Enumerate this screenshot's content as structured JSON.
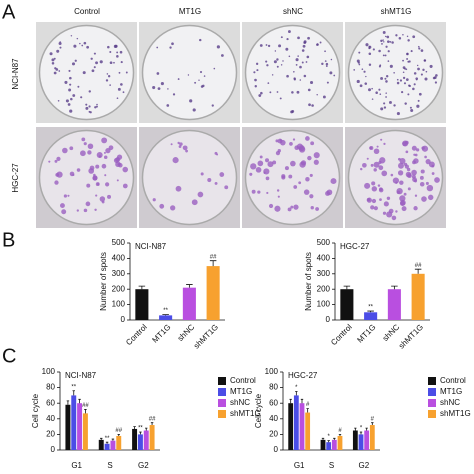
{
  "panel_labels": [
    "A",
    "B",
    "C"
  ],
  "panel_a": {
    "columns": [
      "Control",
      "MT1G",
      "shNC",
      "shMT1G"
    ],
    "rows": [
      "NCI-N87",
      "HGC-27"
    ]
  },
  "chart_data": [
    {
      "type": "bar",
      "title": "NCI-N87",
      "y_label": "Number of spots",
      "categories": [
        "Control",
        "MT1G",
        "shNC",
        "shMT1G"
      ],
      "values": [
        200,
        30,
        210,
        350
      ],
      "errors": [
        20,
        5,
        20,
        35
      ],
      "colors": [
        "#111111",
        "#4b4de6",
        "#b94fe0",
        "#f7a12f"
      ],
      "significance": [
        null,
        "**",
        null,
        "##"
      ],
      "ylim": [
        0,
        500
      ],
      "yticks": [
        0,
        100,
        200,
        300,
        400,
        500
      ]
    },
    {
      "type": "bar",
      "title": "HGC-27",
      "y_label": "Number of spots",
      "categories": [
        "Control",
        "MT1G",
        "shNC",
        "shMT1G"
      ],
      "values": [
        200,
        50,
        200,
        300
      ],
      "errors": [
        20,
        8,
        20,
        30
      ],
      "colors": [
        "#111111",
        "#4b4de6",
        "#b94fe0",
        "#f7a12f"
      ],
      "significance": [
        null,
        "**",
        null,
        "##"
      ],
      "ylim": [
        0,
        500
      ],
      "yticks": [
        0,
        100,
        200,
        300,
        400,
        500
      ]
    },
    {
      "type": "grouped-bar",
      "title": "NCI-N87",
      "y_label": "Cell cycle",
      "categories": [
        "G1",
        "S",
        "G2"
      ],
      "series": [
        {
          "name": "Control",
          "color": "#111111",
          "values": [
            58,
            13,
            27
          ],
          "errors": [
            5,
            2,
            3
          ],
          "significance": [
            null,
            null,
            null
          ]
        },
        {
          "name": "MT1G",
          "color": "#4b4de6",
          "values": [
            70,
            8,
            20
          ],
          "errors": [
            6,
            2,
            3
          ],
          "significance": [
            "**",
            "**",
            "**"
          ]
        },
        {
          "name": "shNC",
          "color": "#b94fe0",
          "values": [
            60,
            12,
            25
          ],
          "errors": [
            5,
            2,
            3
          ],
          "significance": [
            null,
            null,
            null
          ]
        },
        {
          "name": "shMT1G",
          "color": "#f7a12f",
          "values": [
            47,
            18,
            32
          ],
          "errors": [
            5,
            2,
            3
          ],
          "significance": [
            "##",
            "##",
            "##"
          ]
        }
      ],
      "ylim": [
        0,
        100
      ],
      "yticks": [
        0,
        20,
        40,
        60,
        80,
        100
      ]
    },
    {
      "type": "grouped-bar",
      "title": "HGC-27",
      "y_label": "Cell cycle",
      "categories": [
        "G1",
        "S",
        "G2"
      ],
      "series": [
        {
          "name": "Control",
          "color": "#111111",
          "values": [
            60,
            13,
            25
          ],
          "errors": [
            5,
            2,
            3
          ],
          "significance": [
            null,
            null,
            null
          ]
        },
        {
          "name": "MT1G",
          "color": "#4b4de6",
          "values": [
            70,
            10,
            20
          ],
          "errors": [
            5,
            2,
            3
          ],
          "significance": [
            "*",
            "*",
            "*"
          ]
        },
        {
          "name": "shNC",
          "color": "#b94fe0",
          "values": [
            60,
            13,
            25
          ],
          "errors": [
            5,
            2,
            3
          ],
          "significance": [
            null,
            null,
            null
          ]
        },
        {
          "name": "shMT1G",
          "color": "#f7a12f",
          "values": [
            48,
            18,
            32
          ],
          "errors": [
            5,
            2,
            3
          ],
          "significance": [
            "#",
            "#",
            "#"
          ]
        }
      ],
      "ylim": [
        0,
        100
      ],
      "yticks": [
        0,
        20,
        40,
        60,
        80,
        100
      ]
    }
  ]
}
